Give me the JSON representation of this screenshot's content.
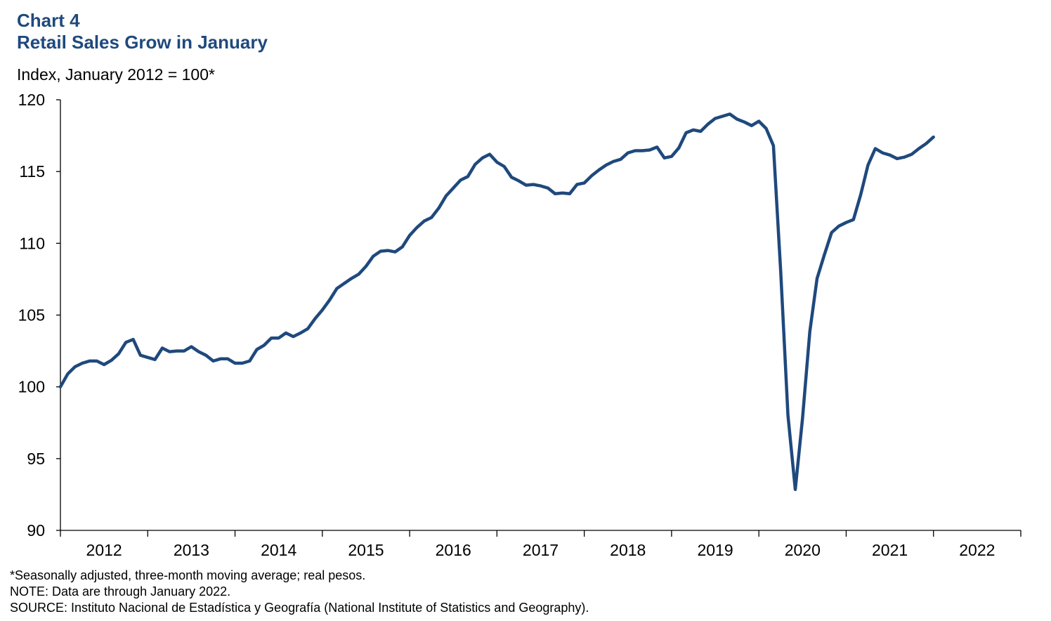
{
  "header": {
    "chart_number": "Chart 4",
    "title": "Retail Sales Grow in January",
    "unit_label": "Index, January 2012 = 100*"
  },
  "footnotes": {
    "footnote": "*Seasonally adjusted, three-month moving average; real pesos.",
    "note": "NOTE: Data are through January 2022.",
    "source": "SOURCE: Instituto Nacional de Estadística y Geografía (National Institute of Statistics and Geography)."
  },
  "chart_data": {
    "type": "line",
    "title": "Retail Sales Grow in January",
    "xlabel": "",
    "ylabel": "Index, January 2012 = 100*",
    "ylim": [
      90,
      120
    ],
    "yticks": [
      90,
      95,
      100,
      105,
      110,
      115,
      120
    ],
    "xlim": [
      2012.0,
      2023.0
    ],
    "year_ticks": [
      "2012",
      "2013",
      "2014",
      "2015",
      "2016",
      "2017",
      "2018",
      "2019",
      "2020",
      "2021",
      "2022"
    ],
    "line_color": "#1f497d",
    "series": [
      {
        "name": "Retail sales index",
        "start": "2012-01",
        "frequency": "monthly",
        "values": [
          100.0,
          100.9,
          101.4,
          101.65,
          101.8,
          101.8,
          101.55,
          101.85,
          102.3,
          103.1,
          103.3,
          102.2,
          102.05,
          101.9,
          102.7,
          102.45,
          102.5,
          102.5,
          102.8,
          102.45,
          102.2,
          101.8,
          101.95,
          101.95,
          101.65,
          101.65,
          101.8,
          102.6,
          102.9,
          103.4,
          103.4,
          103.75,
          103.5,
          103.75,
          104.05,
          104.75,
          105.35,
          106.05,
          106.85,
          107.2,
          107.55,
          107.85,
          108.4,
          109.1,
          109.45,
          109.5,
          109.4,
          109.75,
          110.55,
          111.1,
          111.55,
          111.8,
          112.45,
          113.3,
          113.85,
          114.4,
          114.65,
          115.5,
          115.95,
          116.2,
          115.65,
          115.35,
          114.6,
          114.35,
          114.05,
          114.1,
          114.0,
          113.85,
          113.45,
          113.5,
          113.45,
          114.1,
          114.2,
          114.7,
          115.1,
          115.45,
          115.7,
          115.85,
          116.3,
          116.45,
          116.45,
          116.5,
          116.7,
          115.95,
          116.05,
          116.65,
          117.7,
          117.9,
          117.8,
          118.3,
          118.7,
          118.85,
          119.0,
          118.65,
          118.45,
          118.2,
          118.5,
          118.0,
          116.8,
          108.0,
          98.0,
          92.85,
          97.8,
          103.85,
          107.55,
          109.2,
          110.75,
          111.2,
          111.45,
          111.65,
          113.4,
          115.45,
          116.6,
          116.3,
          116.15,
          115.9,
          116.0,
          116.2,
          116.6,
          116.95,
          117.4
        ]
      }
    ]
  }
}
